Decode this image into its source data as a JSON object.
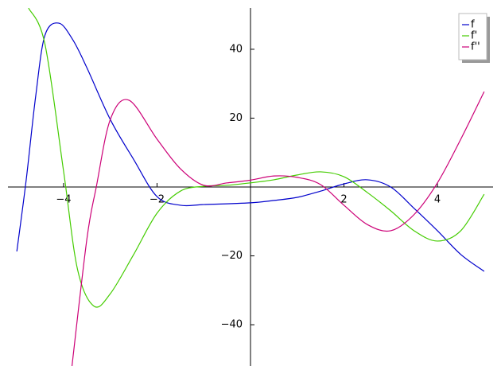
{
  "chart_data": {
    "type": "line",
    "xlim": [
      -5.19,
      5.19
    ],
    "ylim": [
      -52,
      52
    ],
    "xticks": [
      {
        "value": -4,
        "label": "−4"
      },
      {
        "value": -2,
        "label": "−2"
      },
      2,
      4
    ],
    "yticks": [
      {
        "value": -40,
        "label": "−40"
      },
      {
        "value": -20,
        "label": "−20"
      },
      20,
      40
    ],
    "legend": "upper right",
    "series": [
      {
        "name": "f",
        "color": "#0000cc",
        "x": [
          -5,
          -4.8,
          -4.6,
          -4.4,
          -4.1,
          -3.8,
          -3.5,
          -3,
          -2.5,
          -2,
          -1.5,
          -1,
          0,
          0.5,
          1,
          1.5,
          2,
          2.5,
          3,
          3.5,
          4,
          4.5,
          5
        ],
        "values": [
          -18.7,
          2,
          26,
          44,
          47.6,
          42.7,
          34.6,
          19.6,
          8,
          -2.8,
          -5.3,
          -5.1,
          -4.6,
          -3.9,
          -3,
          -1.2,
          0.9,
          2.1,
          0,
          -6.2,
          -12.7,
          -19.6,
          -24.5
        ]
      },
      {
        "name": "f'",
        "color": "#44cc00",
        "x": [
          -4.75,
          -4.4,
          -4,
          -3.7,
          -3.35,
          -3,
          -2.5,
          -2,
          -1.5,
          -1,
          -0.5,
          0,
          0.5,
          1,
          1.5,
          2,
          2.5,
          3,
          3.5,
          4,
          4.5,
          5
        ],
        "values": [
          52,
          41.6,
          4.6,
          -24,
          -34.6,
          -31,
          -19.6,
          -7.6,
          -1.2,
          0.2,
          0.5,
          1.2,
          2.1,
          3.5,
          4.4,
          3,
          -1.6,
          -6.9,
          -12.7,
          -15.7,
          -12.7,
          -2.1
        ]
      },
      {
        "name": "f''",
        "color": "#cc0077",
        "x": [
          -3.82,
          -3.5,
          -3.3,
          -3,
          -2.6,
          -2,
          -1.5,
          -1,
          -0.5,
          0,
          0.5,
          1,
          1.5,
          2,
          2.5,
          3,
          3.5,
          4,
          4.5,
          5
        ],
        "values": [
          -52,
          -15,
          0,
          19.6,
          25.2,
          13.9,
          5.3,
          0.5,
          1.2,
          2,
          3.2,
          2.8,
          0.7,
          -5.3,
          -10.9,
          -12.7,
          -8,
          1.2,
          13.9,
          27.7
        ]
      }
    ]
  }
}
